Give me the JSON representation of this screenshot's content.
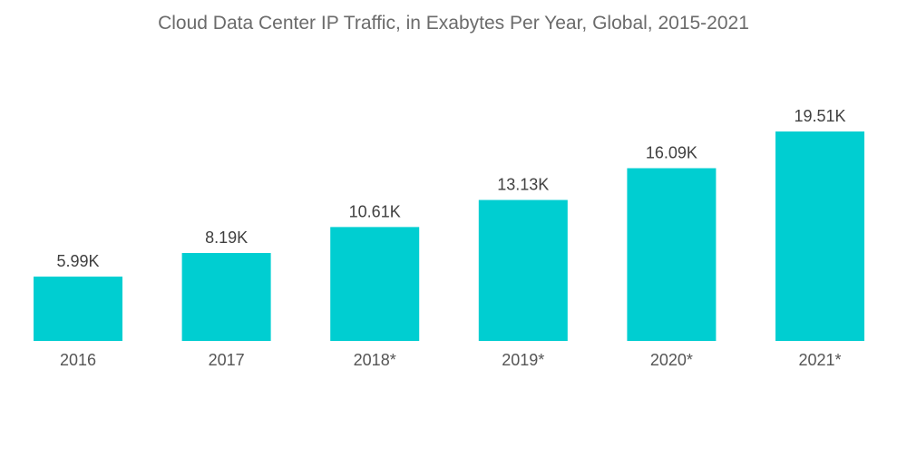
{
  "chart_data": {
    "type": "bar",
    "title": "Cloud Data Center IP Traffic, in Exabytes Per Year, Global, 2015-2021",
    "xlabel": "",
    "ylabel": "",
    "categories": [
      "2016",
      "2017",
      "2018*",
      "2019*",
      "2020*",
      "2021*"
    ],
    "values": [
      5.99,
      8.19,
      10.61,
      13.13,
      16.09,
      19.51
    ],
    "data_labels": [
      "5.99K",
      "8.19K",
      "10.61K",
      "13.13K",
      "16.09K",
      "19.51K"
    ],
    "unit": "K",
    "ylim": [
      0,
      19.51
    ],
    "grid": false,
    "legend": "none",
    "bar_color": "#00ced1"
  }
}
